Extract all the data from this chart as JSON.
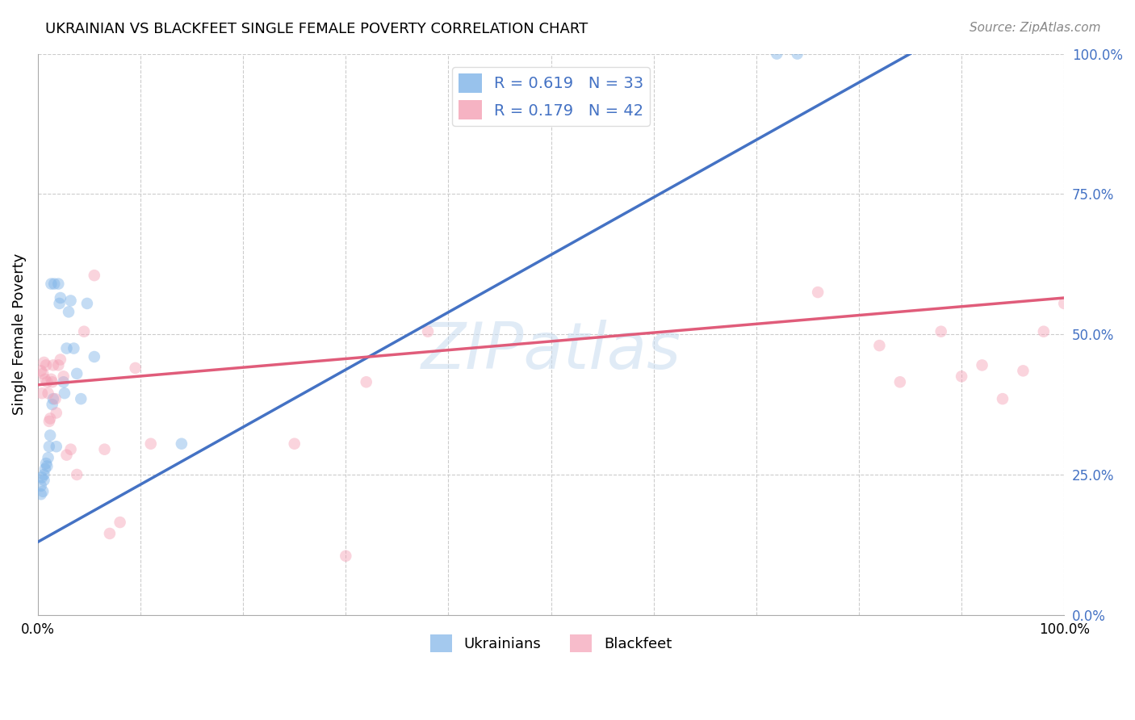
{
  "title": "UKRAINIAN VS BLACKFEET SINGLE FEMALE POVERTY CORRELATION CHART",
  "source": "Source: ZipAtlas.com",
  "ylabel": "Single Female Poverty",
  "xlim": [
    0,
    1
  ],
  "ylim": [
    0,
    1
  ],
  "y_ticks_right": [
    0.0,
    0.25,
    0.5,
    0.75,
    1.0
  ],
  "y_tick_labels_right": [
    "0.0%",
    "25.0%",
    "50.0%",
    "75.0%",
    "100.0%"
  ],
  "ukrainian_color": "#7EB3E8",
  "blackfeet_color": "#F4A0B5",
  "blue_line_color": "#4472C4",
  "pink_line_color": "#E05C7A",
  "legend_R_color": "#4472C4",
  "watermark": "ZIPatlas",
  "R_ukrainian": 0.619,
  "N_ukrainian": 33,
  "R_blackfeet": 0.179,
  "N_blackfeet": 42,
  "uk_line_x0": 0.0,
  "uk_line_y0": 0.13,
  "uk_line_x1": 0.85,
  "uk_line_y1": 1.0,
  "bk_line_x0": 0.0,
  "bk_line_y0": 0.41,
  "bk_line_x1": 1.0,
  "bk_line_y1": 0.565,
  "ukrainians_x": [
    0.003,
    0.003,
    0.004,
    0.005,
    0.006,
    0.006,
    0.007,
    0.008,
    0.009,
    0.01,
    0.011,
    0.012,
    0.013,
    0.014,
    0.015,
    0.016,
    0.018,
    0.02,
    0.021,
    0.022,
    0.025,
    0.026,
    0.028,
    0.03,
    0.032,
    0.035,
    0.038,
    0.042,
    0.048,
    0.055,
    0.14,
    0.72,
    0.74
  ],
  "ukrainians_y": [
    0.215,
    0.23,
    0.245,
    0.22,
    0.24,
    0.25,
    0.26,
    0.27,
    0.265,
    0.28,
    0.3,
    0.32,
    0.59,
    0.375,
    0.385,
    0.59,
    0.3,
    0.59,
    0.555,
    0.565,
    0.415,
    0.395,
    0.475,
    0.54,
    0.56,
    0.475,
    0.43,
    0.385,
    0.555,
    0.46,
    0.305,
    1.0,
    1.0
  ],
  "blackfeet_x": [
    0.003,
    0.004,
    0.005,
    0.006,
    0.007,
    0.008,
    0.009,
    0.01,
    0.011,
    0.012,
    0.013,
    0.014,
    0.015,
    0.017,
    0.018,
    0.02,
    0.022,
    0.025,
    0.028,
    0.032,
    0.038,
    0.045,
    0.055,
    0.065,
    0.07,
    0.08,
    0.095,
    0.11,
    0.25,
    0.3,
    0.32,
    0.38,
    0.76,
    0.82,
    0.84,
    0.88,
    0.9,
    0.92,
    0.94,
    0.96,
    0.98,
    1.0
  ],
  "blackfeet_y": [
    0.435,
    0.395,
    0.43,
    0.45,
    0.42,
    0.445,
    0.415,
    0.395,
    0.345,
    0.35,
    0.42,
    0.415,
    0.445,
    0.385,
    0.36,
    0.445,
    0.455,
    0.425,
    0.285,
    0.295,
    0.25,
    0.505,
    0.605,
    0.295,
    0.145,
    0.165,
    0.44,
    0.305,
    0.305,
    0.105,
    0.415,
    0.505,
    0.575,
    0.48,
    0.415,
    0.505,
    0.425,
    0.445,
    0.385,
    0.435,
    0.505,
    0.555
  ],
  "marker_size": 110,
  "marker_alpha": 0.45
}
